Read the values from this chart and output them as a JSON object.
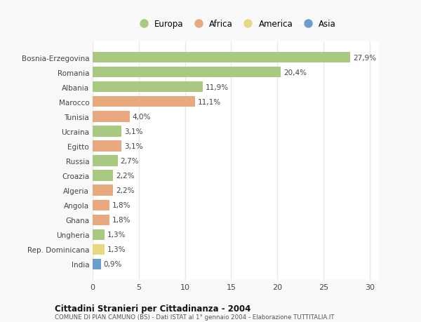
{
  "countries": [
    "Bosnia-Erzegovina",
    "Romania",
    "Albania",
    "Marocco",
    "Tunisia",
    "Ucraina",
    "Egitto",
    "Russia",
    "Croazia",
    "Algeria",
    "Angola",
    "Ghana",
    "Ungheria",
    "Rep. Dominicana",
    "India"
  ],
  "values": [
    27.9,
    20.4,
    11.9,
    11.1,
    4.0,
    3.1,
    3.1,
    2.7,
    2.2,
    2.2,
    1.8,
    1.8,
    1.3,
    1.3,
    0.9
  ],
  "labels": [
    "27,9%",
    "20,4%",
    "11,9%",
    "11,1%",
    "4,0%",
    "3,1%",
    "3,1%",
    "2,7%",
    "2,2%",
    "2,2%",
    "1,8%",
    "1,8%",
    "1,3%",
    "1,3%",
    "0,9%"
  ],
  "continents": [
    "Europa",
    "Europa",
    "Europa",
    "Africa",
    "Africa",
    "Europa",
    "Africa",
    "Europa",
    "Europa",
    "Africa",
    "Africa",
    "Africa",
    "Europa",
    "America",
    "Asia"
  ],
  "continent_colors": {
    "Europa": "#a8c97f",
    "Africa": "#e8a97f",
    "America": "#e8d87f",
    "Asia": "#6b9ecf"
  },
  "legend_order": [
    "Europa",
    "Africa",
    "America",
    "Asia"
  ],
  "title": "Cittadini Stranieri per Cittadinanza - 2004",
  "subtitle": "COMUNE DI PIAN CAMUNO (BS) - Dati ISTAT al 1° gennaio 2004 - Elaborazione TUTTITALIA.IT",
  "xlim": [
    0,
    31
  ],
  "xticks": [
    0,
    5,
    10,
    15,
    20,
    25,
    30
  ],
  "bg_color": "#f9f9f9",
  "plot_bg_color": "#ffffff",
  "grid_color": "#e8e8e8",
  "bar_height": 0.72,
  "label_fontsize": 7.5,
  "ytick_fontsize": 7.5,
  "xtick_fontsize": 8
}
